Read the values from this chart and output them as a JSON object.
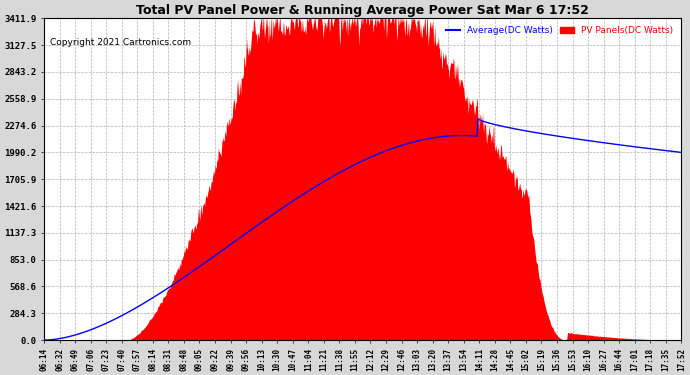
{
  "title": "Total PV Panel Power & Running Average Power Sat Mar 6 17:52",
  "copyright": "Copyright 2021 Cartronics.com",
  "legend_avg": "Average(DC Watts)",
  "legend_pv": "PV Panels(DC Watts)",
  "yticks": [
    0.0,
    284.3,
    568.6,
    853.0,
    1137.3,
    1421.6,
    1705.9,
    1990.2,
    2274.6,
    2558.9,
    2843.2,
    3127.5,
    3411.9
  ],
  "ymax": 3411.9,
  "bg_color": "#d8d8d8",
  "plot_bg_color": "#ffffff",
  "pv_color": "#ff0000",
  "avg_color": "#0000ff",
  "grid_color": "#b0b0b0",
  "title_color": "#000000",
  "copyright_color": "#000000",
  "legend_avg_color": "#0000ff",
  "legend_pv_color": "#ff0000",
  "xtick_labels": [
    "06:14",
    "06:32",
    "06:49",
    "07:06",
    "07:23",
    "07:40",
    "07:57",
    "08:14",
    "08:31",
    "08:48",
    "09:05",
    "09:22",
    "09:39",
    "09:56",
    "10:13",
    "10:30",
    "10:47",
    "11:04",
    "11:21",
    "11:38",
    "11:55",
    "12:12",
    "12:29",
    "12:46",
    "13:03",
    "13:20",
    "13:37",
    "13:54",
    "14:11",
    "14:28",
    "14:45",
    "15:02",
    "15:19",
    "15:36",
    "15:53",
    "16:10",
    "16:27",
    "16:44",
    "17:01",
    "17:18",
    "17:35",
    "17:52"
  ]
}
